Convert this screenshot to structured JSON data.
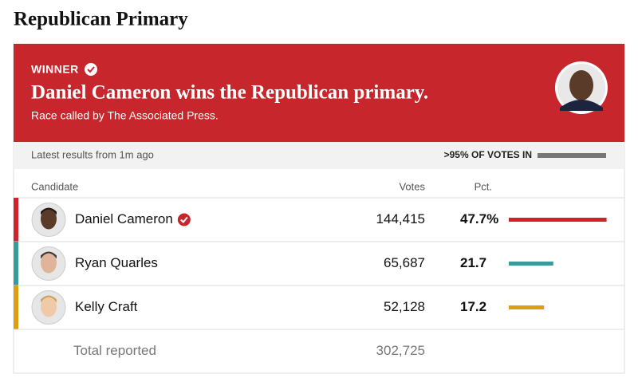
{
  "title": "Republican Primary",
  "banner": {
    "label": "WINNER",
    "headline": "Daniel Cameron wins the Republican primary.",
    "note": "Race called by The Associated Press."
  },
  "status": {
    "updated": "Latest results from 1m ago",
    "reporting": ">95% OF VOTES IN"
  },
  "table": {
    "columns": [
      "Candidate",
      "Votes",
      "Pct."
    ],
    "rows": [
      {
        "name": "Daniel Cameron",
        "votes": "144,415",
        "pct": 47.7,
        "pct_label": "47.7%",
        "color": "#d0222b",
        "winner": true
      },
      {
        "name": "Ryan Quarles",
        "votes": "65,687",
        "pct": 21.7,
        "color": "#3a9c9a"
      },
      {
        "name": "Kelly Craft",
        "votes": "52,128",
        "pct": 17.2,
        "color": "#dc9e12"
      }
    ],
    "total": {
      "label": "Total reported",
      "votes": "302,725"
    }
  }
}
